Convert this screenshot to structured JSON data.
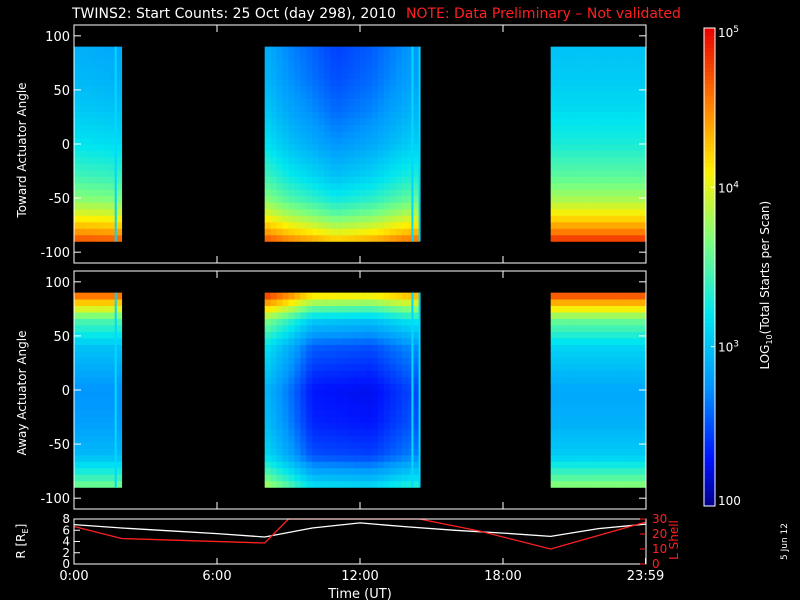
{
  "title": {
    "main": "TWINS2: Start Counts: 25 Oct (day 298), 2010",
    "note": "NOTE: Data Preliminary – Not validated",
    "note_color": "#ff2020"
  },
  "datestamp": "5 Jun 12",
  "chart_data": [
    {
      "type": "heatmap",
      "ylabel": "Toward Actuator Angle",
      "ylim": [
        -110,
        110
      ],
      "yticks": [
        100,
        50,
        0,
        -50,
        -100
      ],
      "xlim": [
        0,
        24
      ],
      "data_intervals_hours": [
        [
          0.0,
          2.0
        ],
        [
          8.0,
          14.6
        ],
        [
          20.0,
          24.0
        ]
      ],
      "spikes_hours": [
        1.75,
        14.2,
        14.5
      ],
      "angle_range": [
        -90,
        90
      ],
      "profile_deg_vs_log10": [
        [
          -90,
          4.75
        ],
        [
          -80,
          4.4
        ],
        [
          -65,
          4.0
        ],
        [
          -50,
          3.7
        ],
        [
          -30,
          3.45
        ],
        [
          0,
          3.2
        ],
        [
          30,
          3.05
        ],
        [
          60,
          2.95
        ],
        [
          90,
          2.9
        ]
      ],
      "time_offset_log10": [
        [
          0,
          0.0
        ],
        [
          2,
          -0.05
        ],
        [
          8,
          0.0
        ],
        [
          9,
          -0.2
        ],
        [
          11,
          -0.45
        ],
        [
          12.5,
          -0.35
        ],
        [
          14,
          -0.15
        ],
        [
          20,
          0.1
        ],
        [
          24,
          0.1
        ]
      ]
    },
    {
      "type": "heatmap",
      "ylabel": "Away Actuator Angle",
      "ylim": [
        -110,
        110
      ],
      "yticks": [
        100,
        50,
        0,
        -50,
        -100
      ],
      "xlim": [
        0,
        24
      ],
      "data_intervals_hours": [
        [
          0.0,
          2.0
        ],
        [
          8.0,
          14.6
        ],
        [
          20.0,
          24.0
        ]
      ],
      "spikes_hours": [
        1.75,
        14.2,
        14.5
      ],
      "angle_range": [
        -90,
        90
      ],
      "profile_deg_vs_log10": [
        [
          -90,
          3.55
        ],
        [
          -80,
          3.3
        ],
        [
          -60,
          2.85
        ],
        [
          -30,
          2.7
        ],
        [
          0,
          2.65
        ],
        [
          40,
          2.9
        ],
        [
          65,
          3.4
        ],
        [
          80,
          4.1
        ],
        [
          90,
          4.6
        ]
      ],
      "time_offset_log10": [
        [
          0,
          0.1
        ],
        [
          2,
          0.1
        ],
        [
          8,
          0.3
        ],
        [
          9,
          0.0
        ],
        [
          10,
          -0.35
        ],
        [
          12.5,
          -0.4
        ],
        [
          14,
          -0.2
        ],
        [
          20,
          0.2
        ],
        [
          24,
          0.2
        ]
      ]
    },
    {
      "type": "line",
      "ylabel_left": "R [R",
      "ylabel_left_sub": "E",
      "ylabel_left_end": "]",
      "ylabel_right": "L Shell",
      "ylim_left": [
        0,
        8
      ],
      "yticks_left": [
        0,
        2,
        4,
        6,
        8
      ],
      "ylim_right": [
        0,
        30
      ],
      "yticks_right": [
        0,
        10,
        20,
        30
      ],
      "xlabel": "Time (UT)",
      "xticks": [
        {
          "v": 0,
          "label": "0:00"
        },
        {
          "v": 6,
          "label": "6:00"
        },
        {
          "v": 12,
          "label": "12:00"
        },
        {
          "v": 18,
          "label": "18:00"
        },
        {
          "v": 23.98,
          "label": "23:59"
        }
      ],
      "series": [
        {
          "color": "#ffffff",
          "axis": "left",
          "x": [
            0,
            2,
            4,
            6,
            8,
            10,
            12,
            14,
            16,
            18,
            20,
            22,
            24
          ],
          "values": [
            7.0,
            6.4,
            5.9,
            5.4,
            4.8,
            6.4,
            7.3,
            6.6,
            6.0,
            5.5,
            4.9,
            6.3,
            7.1
          ]
        },
        {
          "color": "#ff2020",
          "axis": "right",
          "x": [
            0,
            2,
            8,
            9,
            9.3,
            14.5,
            17,
            20,
            24
          ],
          "values": [
            25,
            17,
            14,
            30,
            30,
            30,
            22,
            10,
            28
          ]
        }
      ]
    }
  ],
  "colorbar": {
    "label": "LOG",
    "label_sub": "10",
    "label_rest": "(Total Starts per Scan)",
    "log10_range": [
      2.0,
      5.0
    ],
    "ticks": [
      {
        "v": 5,
        "base": "10",
        "exp": "5"
      },
      {
        "v": 4,
        "base": "10",
        "exp": "4"
      },
      {
        "v": 3,
        "base": "10",
        "exp": "3"
      },
      {
        "v": 2,
        "base": "100",
        "exp": ""
      }
    ]
  }
}
